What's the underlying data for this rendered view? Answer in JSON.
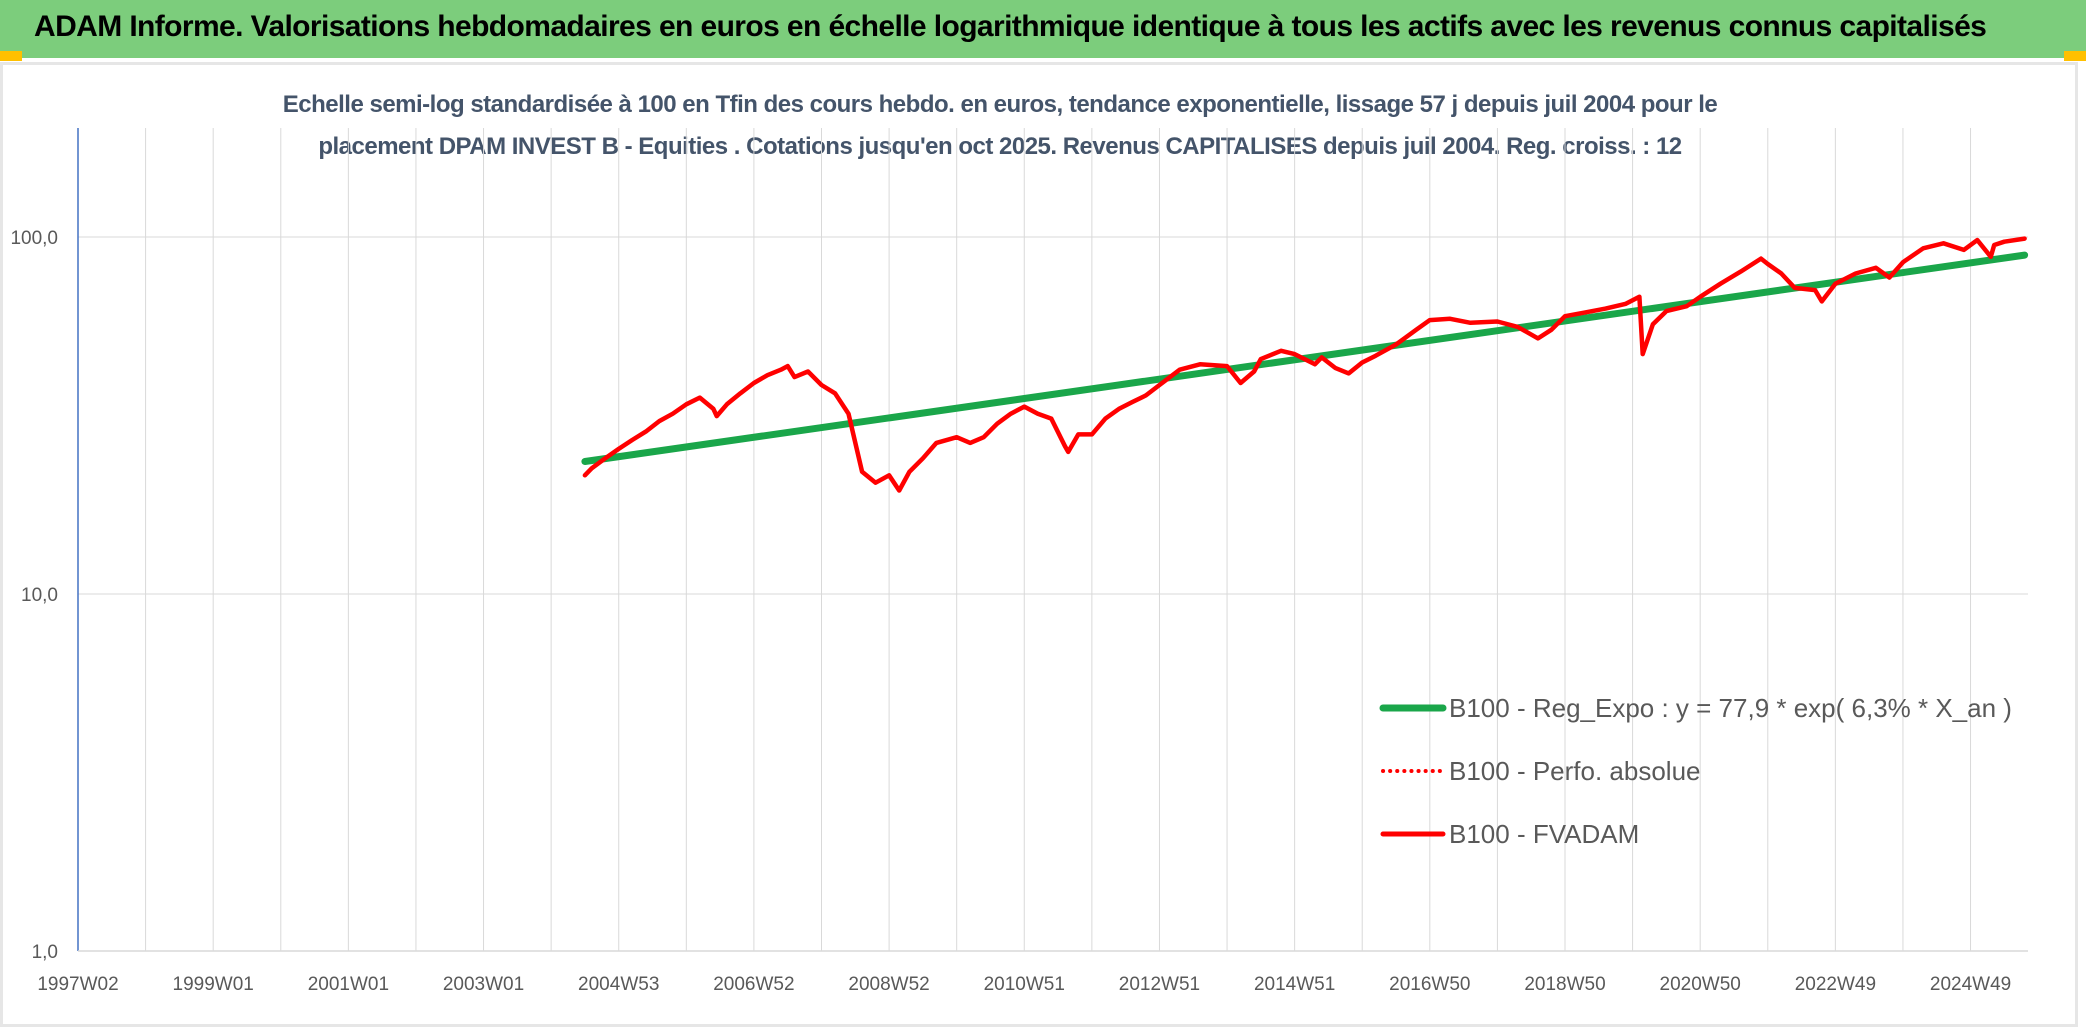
{
  "header": {
    "title": "ADAM Informe. Valorisations hebdomadaires en euros en échelle logarithmique identique à tous les actifs avec les revenus connus capitalisés"
  },
  "colors": {
    "banner": "#7ccd7c",
    "corner_accent": "#ffc000",
    "trend": "#1aa64a",
    "series": "#ff0000",
    "title_text": "#44546a"
  },
  "chart_data": {
    "type": "line",
    "title_line1": "Echelle semi-log standardisée à 100 en Tfin des cours hebdo. en euros, tendance exponentielle, lissage 57 j depuis juil 2004 pour le",
    "title_line2": "placement DPAM INVEST B - Equities . Cotations jusqu'en oct 2025. Revenus CAPITALISES depuis juil 2004. Reg. croiss. : 12",
    "y_scale": "log",
    "ylim": [
      1,
      100
    ],
    "y_ticks": [
      {
        "value": 100,
        "label": "100,0"
      },
      {
        "value": 10,
        "label": "10,0"
      },
      {
        "value": 1,
        "label": "1,0"
      }
    ],
    "xlim": [
      1997.0,
      2025.85
    ],
    "x_ticks": [
      {
        "value": 1997.0,
        "label": "1997W02"
      },
      {
        "value": 1999.0,
        "label": "1999W01"
      },
      {
        "value": 2001.0,
        "label": "2001W01"
      },
      {
        "value": 2003.0,
        "label": "2003W01"
      },
      {
        "value": 2005.0,
        "label": "2004W53"
      },
      {
        "value": 2007.0,
        "label": "2006W52"
      },
      {
        "value": 2009.0,
        "label": "2008W52"
      },
      {
        "value": 2011.0,
        "label": "2010W51"
      },
      {
        "value": 2013.0,
        "label": "2012W51"
      },
      {
        "value": 2015.0,
        "label": "2014W51"
      },
      {
        "value": 2017.0,
        "label": "2016W50"
      },
      {
        "value": 2019.0,
        "label": "2018W50"
      },
      {
        "value": 2021.0,
        "label": "2020W50"
      },
      {
        "value": 2023.0,
        "label": "2022W49"
      },
      {
        "value": 2025.0,
        "label": "2024W49"
      }
    ],
    "grid": true,
    "legend_position": "right",
    "series": [
      {
        "name": "B100 - Reg_Expo : y = 77,9 * exp( 6,3% *  X_an )",
        "style": "solid-thick",
        "color": "#1aa64a",
        "x": [
          2004.5,
          2025.8
        ],
        "y": [
          23.5,
          89.0
        ]
      },
      {
        "name": "B100 - Perfo. absolue",
        "style": "dotted",
        "color": "#ff0000",
        "x": [],
        "y": []
      },
      {
        "name": "B100 - FVADAM",
        "style": "solid",
        "color": "#ff0000",
        "x": [
          2004.5,
          2004.6,
          2004.8,
          2005.0,
          2005.2,
          2005.4,
          2005.6,
          2005.8,
          2006.0,
          2006.2,
          2006.4,
          2006.45,
          2006.6,
          2006.8,
          2007.0,
          2007.2,
          2007.4,
          2007.5,
          2007.6,
          2007.8,
          2008.0,
          2008.2,
          2008.4,
          2008.6,
          2008.8,
          2009.0,
          2009.15,
          2009.3,
          2009.5,
          2009.7,
          2010.0,
          2010.2,
          2010.4,
          2010.6,
          2010.8,
          2011.0,
          2011.2,
          2011.4,
          2011.6,
          2011.65,
          2011.8,
          2012.0,
          2012.2,
          2012.4,
          2012.6,
          2012.8,
          2013.0,
          2013.3,
          2013.6,
          2014.0,
          2014.2,
          2014.4,
          2014.5,
          2014.8,
          2015.0,
          2015.3,
          2015.4,
          2015.6,
          2015.8,
          2016.0,
          2016.2,
          2016.5,
          2016.8,
          2017.0,
          2017.3,
          2017.6,
          2018.0,
          2018.3,
          2018.6,
          2018.8,
          2019.0,
          2019.3,
          2019.6,
          2019.9,
          2020.1,
          2020.15,
          2020.3,
          2020.5,
          2020.8,
          2021.0,
          2021.3,
          2021.6,
          2021.9,
          2022.0,
          2022.2,
          2022.4,
          2022.7,
          2022.8,
          2023.0,
          2023.3,
          2023.6,
          2023.8,
          2024.0,
          2024.3,
          2024.6,
          2024.9,
          2025.1,
          2025.3,
          2025.35,
          2025.5,
          2025.8
        ],
        "y": [
          21.5,
          22.5,
          24.0,
          25.5,
          27.0,
          28.5,
          30.5,
          32.0,
          34.0,
          35.5,
          33.0,
          31.5,
          34.0,
          36.5,
          39.0,
          41.0,
          42.5,
          43.5,
          40.5,
          42.0,
          38.5,
          36.5,
          32.0,
          22.0,
          20.5,
          21.5,
          19.5,
          22.0,
          24.0,
          26.5,
          27.5,
          26.5,
          27.5,
          30.0,
          32.0,
          33.5,
          32.0,
          31.0,
          26.0,
          25.0,
          28.0,
          28.0,
          31.0,
          33.0,
          34.5,
          36.0,
          38.5,
          42.5,
          44.0,
          43.5,
          39.0,
          42.0,
          45.5,
          48.0,
          47.0,
          44.0,
          46.0,
          43.0,
          41.5,
          44.5,
          46.5,
          50.0,
          55.0,
          58.5,
          59.0,
          57.5,
          58.0,
          56.0,
          52.0,
          55.0,
          60.0,
          61.5,
          63.0,
          65.0,
          68.0,
          47.0,
          57.0,
          62.0,
          64.0,
          68.0,
          74.0,
          80.0,
          87.0,
          84.0,
          79.0,
          72.0,
          71.0,
          66.0,
          74.0,
          79.0,
          82.0,
          77.0,
          85.0,
          93.0,
          96.0,
          92.0,
          98.0,
          88.0,
          95.0,
          97.0,
          99.0
        ]
      }
    ]
  }
}
